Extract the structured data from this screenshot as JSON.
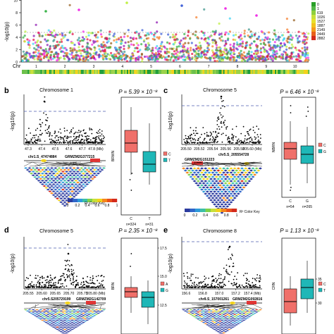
{
  "manhattan": {
    "y_ticks": [
      "0",
      "2",
      "4",
      "6",
      "8",
      "10"
    ],
    "y_label": "-log10(p)",
    "x_label": "Chr",
    "chromosomes": [
      "1",
      "2",
      "3",
      "4",
      "5",
      "6",
      "7",
      "8",
      "9",
      "10"
    ],
    "legend_values": [
      "0",
      "1",
      "619",
      "1026",
      "1527",
      "1887",
      "2149",
      "2449",
      "2882"
    ],
    "colors": [
      "#e6194b",
      "#3cb44b",
      "#4363d8",
      "#f58231",
      "#911eb4",
      "#42d4f4",
      "#f032e6",
      "#bfef45",
      "#469990",
      "#9a6324"
    ]
  },
  "panels": [
    {
      "letter": "b",
      "title": "Chromosome 1",
      "p_value": "P = 5.39 × 10⁻⁸",
      "x_ticks": [
        "47.3",
        "47.4",
        "47.5",
        "47.6",
        "47.7",
        "47.8 (Mb)"
      ],
      "snp": "chr1.S_47474884",
      "gene": "GRMZM2G377215",
      "box_ylabel": "BRWN",
      "groups": [
        "C",
        "T"
      ],
      "counts": [
        "n=324",
        "n=31"
      ],
      "legend": [
        "C",
        "T"
      ],
      "color_key": "R² Color Key",
      "key_ticks": [
        "0",
        "0.2",
        "0.4",
        "0.6",
        "0.8",
        "1"
      ]
    },
    {
      "letter": "c",
      "title": "Chromosome 5",
      "p_value": "P = 6.46 × 10⁻⁸",
      "x_ticks": [
        "205.50",
        "205.52",
        "205.54",
        "205.56",
        "205.58",
        "205.60 (Mb)"
      ],
      "snp": "chr5.S_205554728",
      "gene": "GRMZM2G151223",
      "box_ylabel": "NBRN",
      "groups": [
        "C",
        "G"
      ],
      "counts": [
        "n=54",
        "n=265"
      ],
      "legend": [
        "C",
        "G"
      ],
      "color_key": "R² Color Key",
      "key_ticks": [
        "0",
        "0.2",
        "0.4",
        "0.6",
        "0.8",
        "1"
      ]
    },
    {
      "letter": "d",
      "title": "Chromosome 5",
      "p_value": "P = 2.35 × 10⁻⁸",
      "x_ticks": [
        "205.55",
        "205.60",
        "205.65",
        "205.70",
        "205.75",
        "205.80 (Mb)"
      ],
      "snp": "chr5.S205729199",
      "gene": "GRMZM2G142709",
      "box_ylabel": "BRN",
      "box_ticks": [
        "12.5",
        "15.0",
        "17.5"
      ],
      "legend": [
        "A",
        "G"
      ]
    },
    {
      "letter": "e",
      "title": "Chromosome 8",
      "p_value": "P = 1.13 × 10⁻⁸",
      "x_ticks": [
        "156.6",
        "156.8",
        "157.0",
        "157.2",
        "157.4 (Mb)"
      ],
      "snp": "chr8.S_157001261",
      "gene": "GRMZM2G092816",
      "box_ylabel": "CRN",
      "box_ticks": [
        "30",
        "35"
      ],
      "legend": [
        "C",
        "T"
      ]
    }
  ]
}
